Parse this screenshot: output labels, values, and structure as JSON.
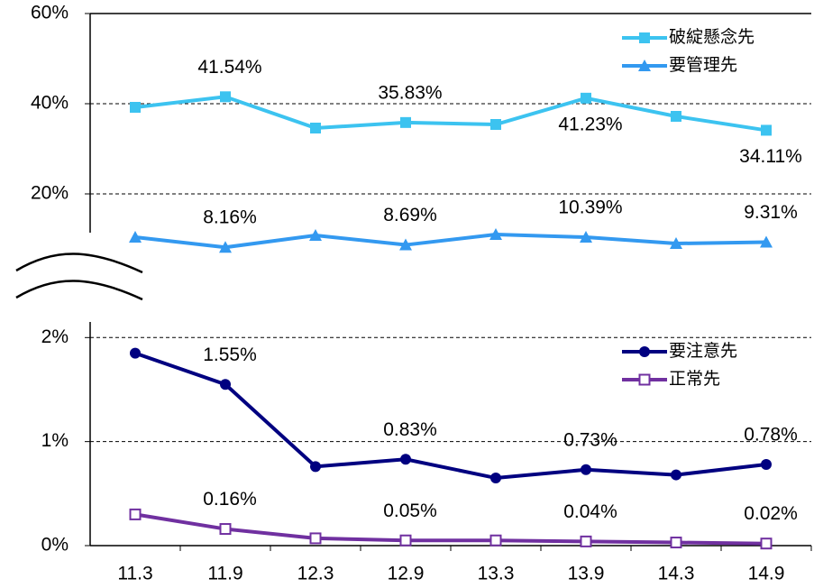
{
  "chart_data": [
    {
      "type": "line",
      "categories": [
        "11.3",
        "11.9",
        "12.3",
        "12.9",
        "13.3",
        "13.9",
        "14.3",
        "14.9"
      ],
      "ylim": [
        6,
        60
      ],
      "yticks": [
        {
          "value": 20,
          "label": "20%"
        },
        {
          "value": 40,
          "label": "40%"
        },
        {
          "value": 60,
          "label": "60%"
        }
      ],
      "grid": true,
      "legend": "upper right",
      "series": [
        {
          "name": "破綻懸念先",
          "color": "#3cc3f0",
          "marker": "square",
          "values": [
            39.2,
            41.54,
            34.6,
            35.83,
            35.4,
            41.23,
            37.2,
            34.11
          ],
          "value_labels": [
            null,
            "41.54%",
            null,
            "35.83%",
            null,
            "41.23%",
            null,
            "34.11%"
          ]
        },
        {
          "name": "要管理先",
          "color": "#3399f0",
          "marker": "triangle",
          "values": [
            10.4,
            8.16,
            10.8,
            8.69,
            11.0,
            10.39,
            9.0,
            9.31
          ],
          "value_labels": [
            null,
            "8.16%",
            null,
            "8.69%",
            null,
            "10.39%",
            null,
            "9.31%"
          ]
        }
      ]
    },
    {
      "type": "line",
      "categories": [
        "11.3",
        "11.9",
        "12.3",
        "12.9",
        "13.3",
        "13.9",
        "14.3",
        "14.9"
      ],
      "ylim": [
        0,
        2.15
      ],
      "yticks": [
        {
          "value": 0,
          "label": "0%"
        },
        {
          "value": 1,
          "label": "1%"
        },
        {
          "value": 2,
          "label": "2%"
        }
      ],
      "grid": true,
      "legend": "upper right",
      "series": [
        {
          "name": "要注意先",
          "color": "#000080",
          "marker": "circle",
          "values": [
            1.85,
            1.55,
            0.76,
            0.83,
            0.65,
            0.73,
            0.68,
            0.78
          ],
          "value_labels": [
            null,
            "1.55%",
            null,
            "0.83%",
            null,
            "0.73%",
            null,
            "0.78%"
          ]
        },
        {
          "name": "正常先",
          "color": "#7030a0",
          "marker": "open-square",
          "values": [
            0.3,
            0.16,
            0.07,
            0.05,
            0.05,
            0.04,
            0.03,
            0.02
          ],
          "value_labels": [
            null,
            "0.16%",
            null,
            "0.05%",
            null,
            "0.04%",
            null,
            "0.02%"
          ]
        }
      ]
    }
  ]
}
